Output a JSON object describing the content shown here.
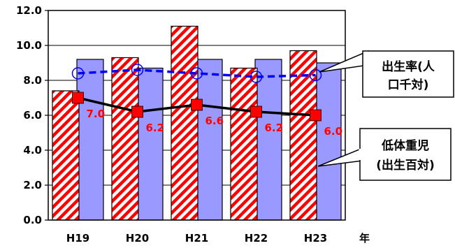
{
  "chart_data": {
    "type": "bar",
    "categories": [
      "H19",
      "H20",
      "H21",
      "H22",
      "H23"
    ],
    "xlabel": "年",
    "ylim": [
      0,
      12
    ],
    "yticks": [
      "0.0",
      "2.0",
      "4.0",
      "6.0",
      "8.0",
      "10.0",
      "12.0"
    ],
    "grid": "horizontal",
    "series": [
      {
        "kind": "bar",
        "style": "hatched",
        "color": "#ff0000",
        "values": [
          7.4,
          9.3,
          11.1,
          8.7,
          9.7
        ]
      },
      {
        "kind": "bar",
        "style": "solid",
        "color": "#9999ff",
        "values": [
          9.2,
          8.7,
          9.2,
          9.2,
          9.0
        ]
      },
      {
        "kind": "line",
        "style": "solid",
        "marker": "square",
        "color": "#000000",
        "marker_color": "#ff0000",
        "values": [
          7.0,
          6.2,
          6.6,
          6.2,
          6.0
        ],
        "labels": [
          "7.0",
          "6.2",
          "6.6",
          "6.2",
          "6.0"
        ]
      },
      {
        "kind": "line",
        "style": "dashed",
        "marker": "circle-open",
        "color": "#0000ff",
        "values": [
          8.4,
          8.6,
          8.4,
          8.2,
          8.3
        ]
      }
    ],
    "callouts": [
      {
        "id": "birth-rate",
        "lines": [
          "出生率(人",
          "口千対)"
        ]
      },
      {
        "id": "low-birth-weight",
        "lines": [
          "低体重児",
          "(出生百対)"
        ]
      }
    ]
  }
}
